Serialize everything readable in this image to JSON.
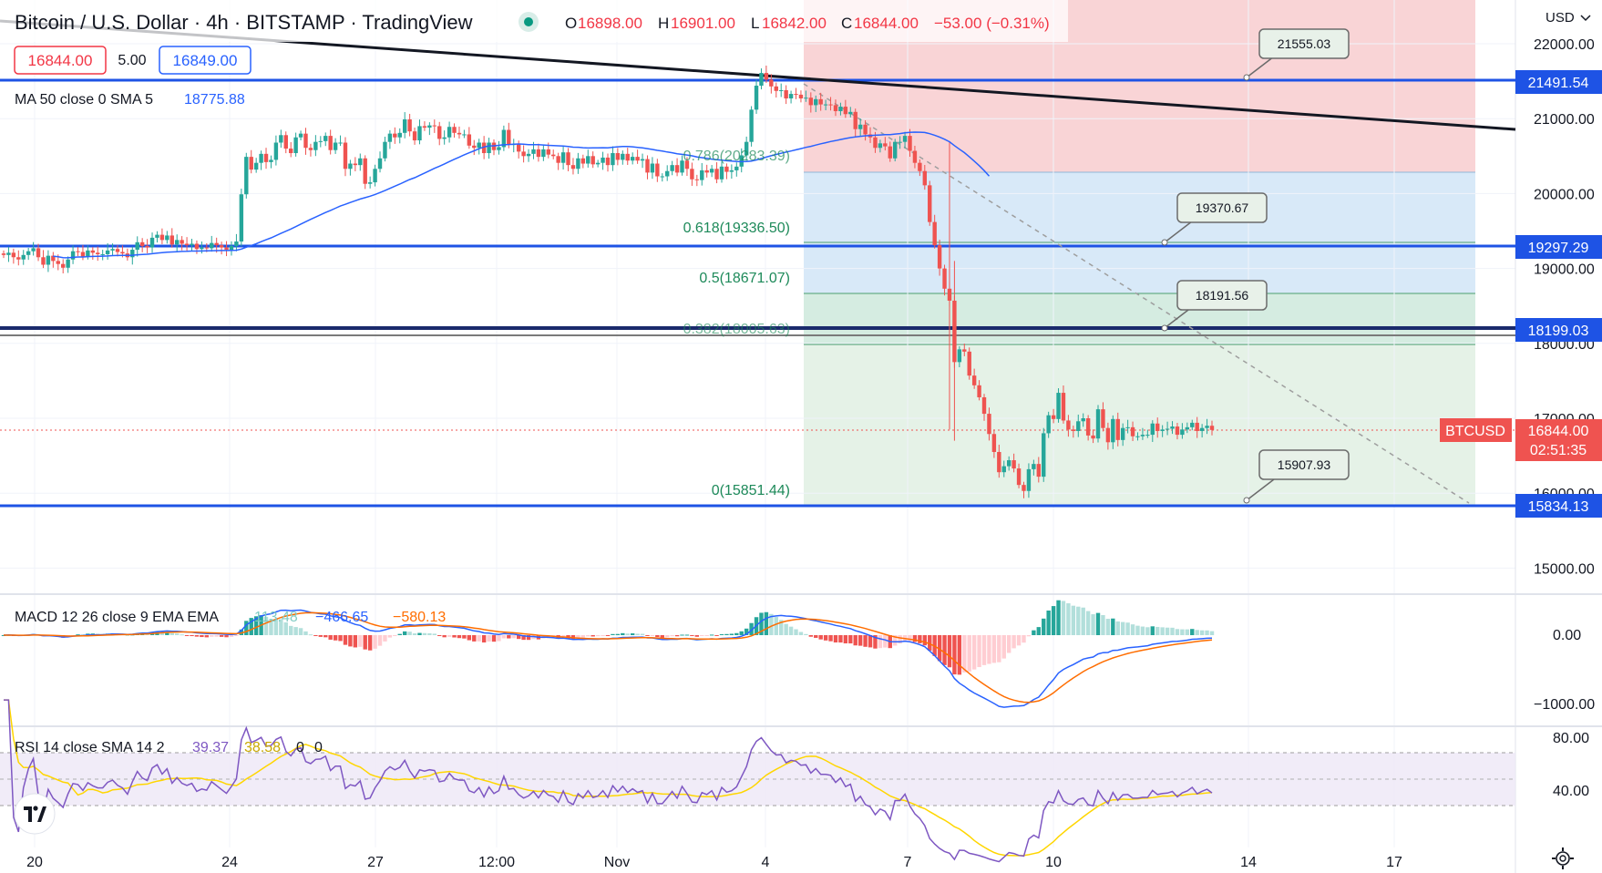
{
  "header": {
    "title": "Bitcoin / U.S. Dollar · 4h · BITSTAMP · TradingView",
    "open_label": "O",
    "open": "16898.00",
    "high_label": "H",
    "high": "16901.00",
    "low_label": "L",
    "low": "16842.00",
    "close_label": "C",
    "close": "16844.00",
    "change": "−53.00 (−0.31%)",
    "currency": "USD",
    "bid": "16844.00",
    "spread": "5.00",
    "ask": "16849.00"
  },
  "ma_legend": {
    "label": "MA 50 close 0 SMA 5",
    "value": "18775.88"
  },
  "macd_legend": {
    "label": "MACD 12 26 close 9 EMA EMA",
    "hist": "113.48",
    "macd": "−466.65",
    "signal": "−580.13"
  },
  "rsi_legend": {
    "label": "RSI 14 close SMA 14 2",
    "rsi": "39.37",
    "ma": "38.58",
    "extra1": "0",
    "extra2": "0"
  },
  "price_pills": {
    "r1": "21491.54",
    "r2": "19297.29",
    "r3": "18199.03",
    "s1": "15834.13",
    "symbol": "BTCUSD",
    "last": "16844.00",
    "countdown": "02:51:35"
  },
  "callouts": {
    "c1": "21555.03",
    "c2": "19370.67",
    "c3": "18191.56",
    "c4": "15907.93"
  },
  "fib_labels": {
    "f786": "0.786(20283.39)",
    "f618": "0.618(19336.50)",
    "f5": "0.5(18671.07)",
    "f382": "0.382(18005.63)",
    "f0": "0(15851.44)"
  },
  "price_axis": [
    "22000.00",
    "21000.00",
    "20000.00",
    "19000.00",
    "18000.00",
    "17000.00",
    "16000.00",
    "15000.00"
  ],
  "macd_axis": [
    "0.00",
    "−1000.00"
  ],
  "rsi_axis": [
    "80.00",
    "40.00"
  ],
  "time_axis": [
    "20",
    "24",
    "27",
    "12:00",
    "Nov",
    "4",
    "7",
    "10",
    "14",
    "17"
  ],
  "colors": {
    "up": "#26a69a",
    "down": "#ef5350",
    "level_line": "#1e53e5",
    "ma": "#2962ff",
    "macd": "#2962ff",
    "signal": "#ff6d00",
    "rsi": "#7e57c2",
    "rsi_ma": "#ffd600",
    "fib_red": "#f9d4d6",
    "fib_blue": "#d6e8f8",
    "fib_green": "#e3f1e6"
  },
  "chart_data": {
    "type": "candlestick",
    "symbol": "BTCUSD",
    "interval": "4h",
    "x_ticks": [
      "20",
      "24",
      "27",
      "12:00",
      "Nov",
      "4",
      "7",
      "10",
      "14",
      "17"
    ],
    "ylim": [
      14300,
      22600
    ],
    "y_ticks": [
      22000,
      21000,
      20000,
      19000,
      18000,
      17000,
      16000,
      15000
    ],
    "horizontal_levels": [
      21491.54,
      19297.29,
      18199.03,
      15834.13
    ],
    "fibonacci": [
      {
        "level": "0.786",
        "price": 20283.39
      },
      {
        "level": "0.618",
        "price": 19336.5
      },
      {
        "level": "0.5",
        "price": 18671.07
      },
      {
        "level": "0.382",
        "price": 18005.63
      },
      {
        "level": "0",
        "price": 15851.44
      }
    ],
    "candle_closes": [
      19180,
      19210,
      19150,
      19120,
      19180,
      19230,
      19270,
      19150,
      19050,
      19170,
      19100,
      19060,
      19010,
      19120,
      19230,
      19220,
      19160,
      19240,
      19210,
      19190,
      19190,
      19240,
      19260,
      19220,
      19200,
      19150,
      19250,
      19350,
      19300,
      19280,
      19410,
      19450,
      19380,
      19440,
      19320,
      19380,
      19330,
      19310,
      19330,
      19260,
      19280,
      19270,
      19340,
      19310,
      19280,
      19250,
      19300,
      19360,
      19990,
      20490,
      20320,
      20410,
      20530,
      20420,
      20450,
      20680,
      20780,
      20600,
      20540,
      20750,
      20800,
      20610,
      20580,
      20690,
      20700,
      20770,
      20580,
      20680,
      20680,
      20330,
      20400,
      20380,
      20470,
      20130,
      20150,
      20330,
      20470,
      20690,
      20800,
      20750,
      20810,
      20990,
      20830,
      20710,
      20900,
      20880,
      20910,
      20900,
      20730,
      20750,
      20890,
      20810,
      20790,
      20790,
      20640,
      20610,
      20680,
      20540,
      20680,
      20580,
      20620,
      20850,
      20650,
      20660,
      20560,
      20500,
      20530,
      20590,
      20490,
      20590,
      20520,
      20500,
      20410,
      20550,
      20380,
      20330,
      20470,
      20400,
      20500,
      20390,
      20410,
      20480,
      20380,
      20540,
      20450,
      20530,
      20440,
      20490,
      20440,
      20460,
      20280,
      20400,
      20230,
      20230,
      20300,
      20380,
      20280,
      20440,
      20330,
      20190,
      20180,
      20310,
      20280,
      20330,
      20190,
      20360,
      20290,
      20310,
      20360,
      20510,
      20690,
      21120,
      21440,
      21610,
      21520,
      21430,
      21370,
      21380,
      21270,
      21330,
      21320,
      21270,
      21280,
      21180,
      21260,
      21190,
      21190,
      21180,
      21100,
      21160,
      21060,
      21090,
      20860,
      20920,
      20790,
      20750,
      20610,
      20670,
      20630,
      20470,
      20690,
      20690,
      20770,
      20570,
      20410,
      20300,
      20110,
      19620,
      19310,
      19000,
      18730,
      18570,
      17750,
      17920,
      17890,
      17570,
      17440,
      17280,
      17060,
      16790,
      16550,
      16280,
      16360,
      16440,
      16330,
      16110,
      16030,
      16320,
      16390,
      16220,
      16800,
      17040,
      16990,
      17340,
      16970,
      16850,
      16830,
      16960,
      17000,
      16770,
      16730,
      17120,
      16870,
      16680,
      16990,
      16710,
      16870,
      16880,
      16760,
      16760,
      16780,
      16780,
      16930,
      16830,
      16850,
      16860,
      16890,
      16780,
      16850,
      16880,
      16940,
      16830,
      16870,
      16900,
      16844
    ],
    "ma_50_last": 18775.88,
    "last_price": 16844.0,
    "macd": {
      "hist": 113.48,
      "macd": -466.65,
      "signal": -580.13,
      "y_ticks": [
        0,
        -1000
      ]
    },
    "rsi": {
      "rsi": 39.37,
      "ma": 38.58,
      "y_ticks": [
        80,
        40
      ]
    }
  }
}
